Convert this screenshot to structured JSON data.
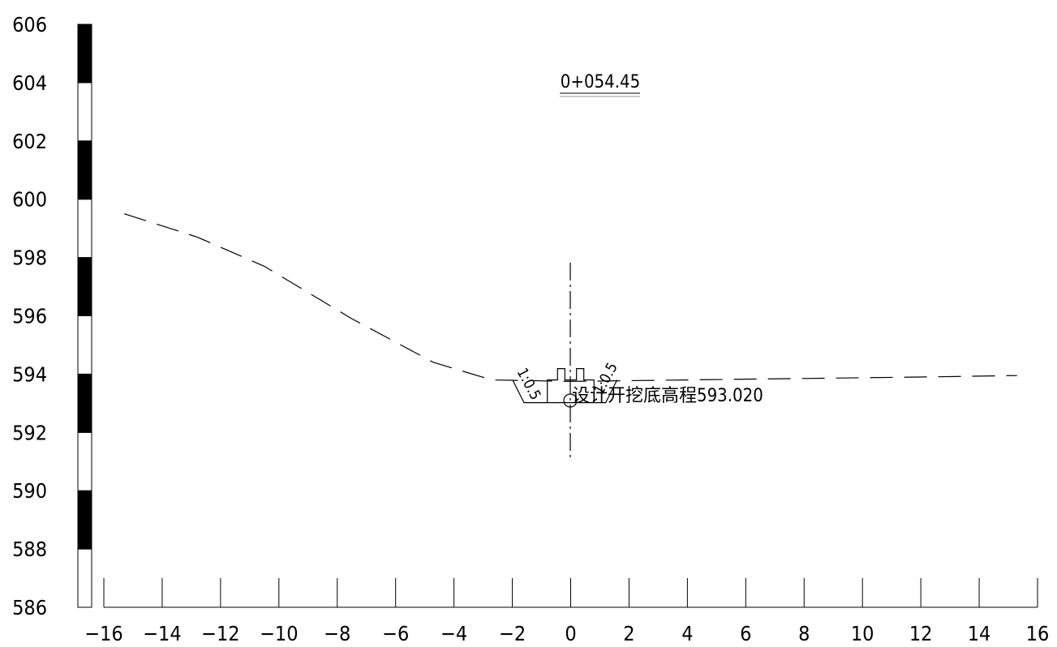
{
  "section": {
    "station_label": "0+054.45",
    "design_note": "设计开挖底高程593.020",
    "left_slope_label": "1:0.5",
    "right_slope_label": "1:0.5"
  },
  "elevation_scale": {
    "min": 586,
    "max": 606,
    "step": 2,
    "tick_labels": [
      "606",
      "604",
      "602",
      "600",
      "598",
      "596",
      "594",
      "592",
      "590",
      "588",
      "586"
    ]
  },
  "offset_scale": {
    "min": -16,
    "max": 16,
    "step": 2,
    "tick_labels": [
      "-16",
      "-14",
      "-12",
      "-10",
      "-8",
      "-6",
      "-4",
      "-2",
      "0",
      "2",
      "4",
      "6",
      "8",
      "10",
      "12",
      "14",
      "16"
    ]
  },
  "ground_profile": [
    {
      "x": -15.3,
      "y": 599.5
    },
    {
      "x": -12.8,
      "y": 598.7
    },
    {
      "x": -10.5,
      "y": 597.7
    },
    {
      "x": -7.5,
      "y": 595.9
    },
    {
      "x": -4.7,
      "y": 594.4
    },
    {
      "x": -2.7,
      "y": 593.8
    },
    {
      "x": 0,
      "y": 593.75
    },
    {
      "x": 4,
      "y": 593.8
    },
    {
      "x": 8,
      "y": 593.85
    },
    {
      "x": 12,
      "y": 593.9
    },
    {
      "x": 15.3,
      "y": 593.95
    }
  ],
  "excavation": {
    "bottom_elevation": 593.02,
    "left_bottom_x": -1.6,
    "right_bottom_x": 1.2,
    "top_elevation": 593.8
  },
  "colors": {
    "line": "#000000",
    "background": "#ffffff"
  }
}
